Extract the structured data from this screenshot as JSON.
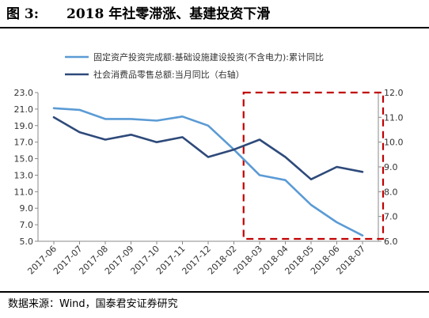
{
  "header": {
    "figure_number": "图 3:",
    "title": "2018 年社零滞涨、基建投资下滑"
  },
  "footer": {
    "source": "数据来源：Wind，国泰君安证券研究"
  },
  "chart_data": {
    "type": "line",
    "categories": [
      "2017-06",
      "2017-07",
      "2017-08",
      "2017-09",
      "2017-10",
      "2017-11",
      "2017-12",
      "2018-02",
      "2018-03",
      "2018-04",
      "2018-05",
      "2018-06",
      "2018-07"
    ],
    "series": [
      {
        "name": "固定资产投资完成额:基础设施建设投资(不含电力):累计同比",
        "axis": "left",
        "color": "#5b9bd5",
        "values": [
          21.1,
          20.9,
          19.8,
          19.8,
          19.6,
          20.1,
          19.0,
          16.1,
          13.0,
          12.4,
          9.4,
          7.3,
          5.7
        ]
      },
      {
        "name": "社会消费品零售总额:当月同比（右轴）",
        "axis": "right",
        "color": "#2e4a7a",
        "values": [
          11.0,
          10.4,
          10.1,
          10.3,
          10.0,
          10.2,
          9.4,
          9.7,
          10.1,
          9.4,
          8.5,
          9.0,
          8.8
        ]
      }
    ],
    "left_axis": {
      "min": 5.0,
      "max": 23.0,
      "ticks": [
        "5.0",
        "7.0",
        "9.0",
        "11.0",
        "13.0",
        "15.0",
        "17.0",
        "19.0",
        "21.0",
        "23.0"
      ]
    },
    "right_axis": {
      "min": 6.0,
      "max": 12.0,
      "ticks": [
        "6.0",
        "7.0",
        "8.0",
        "9.0",
        "10.0",
        "11.0",
        "12.0"
      ]
    },
    "highlight": {
      "from": "2018-02",
      "to": "2018-07",
      "color": "#c00000",
      "style": "dashed"
    },
    "grid": false,
    "legend_position": "top"
  }
}
